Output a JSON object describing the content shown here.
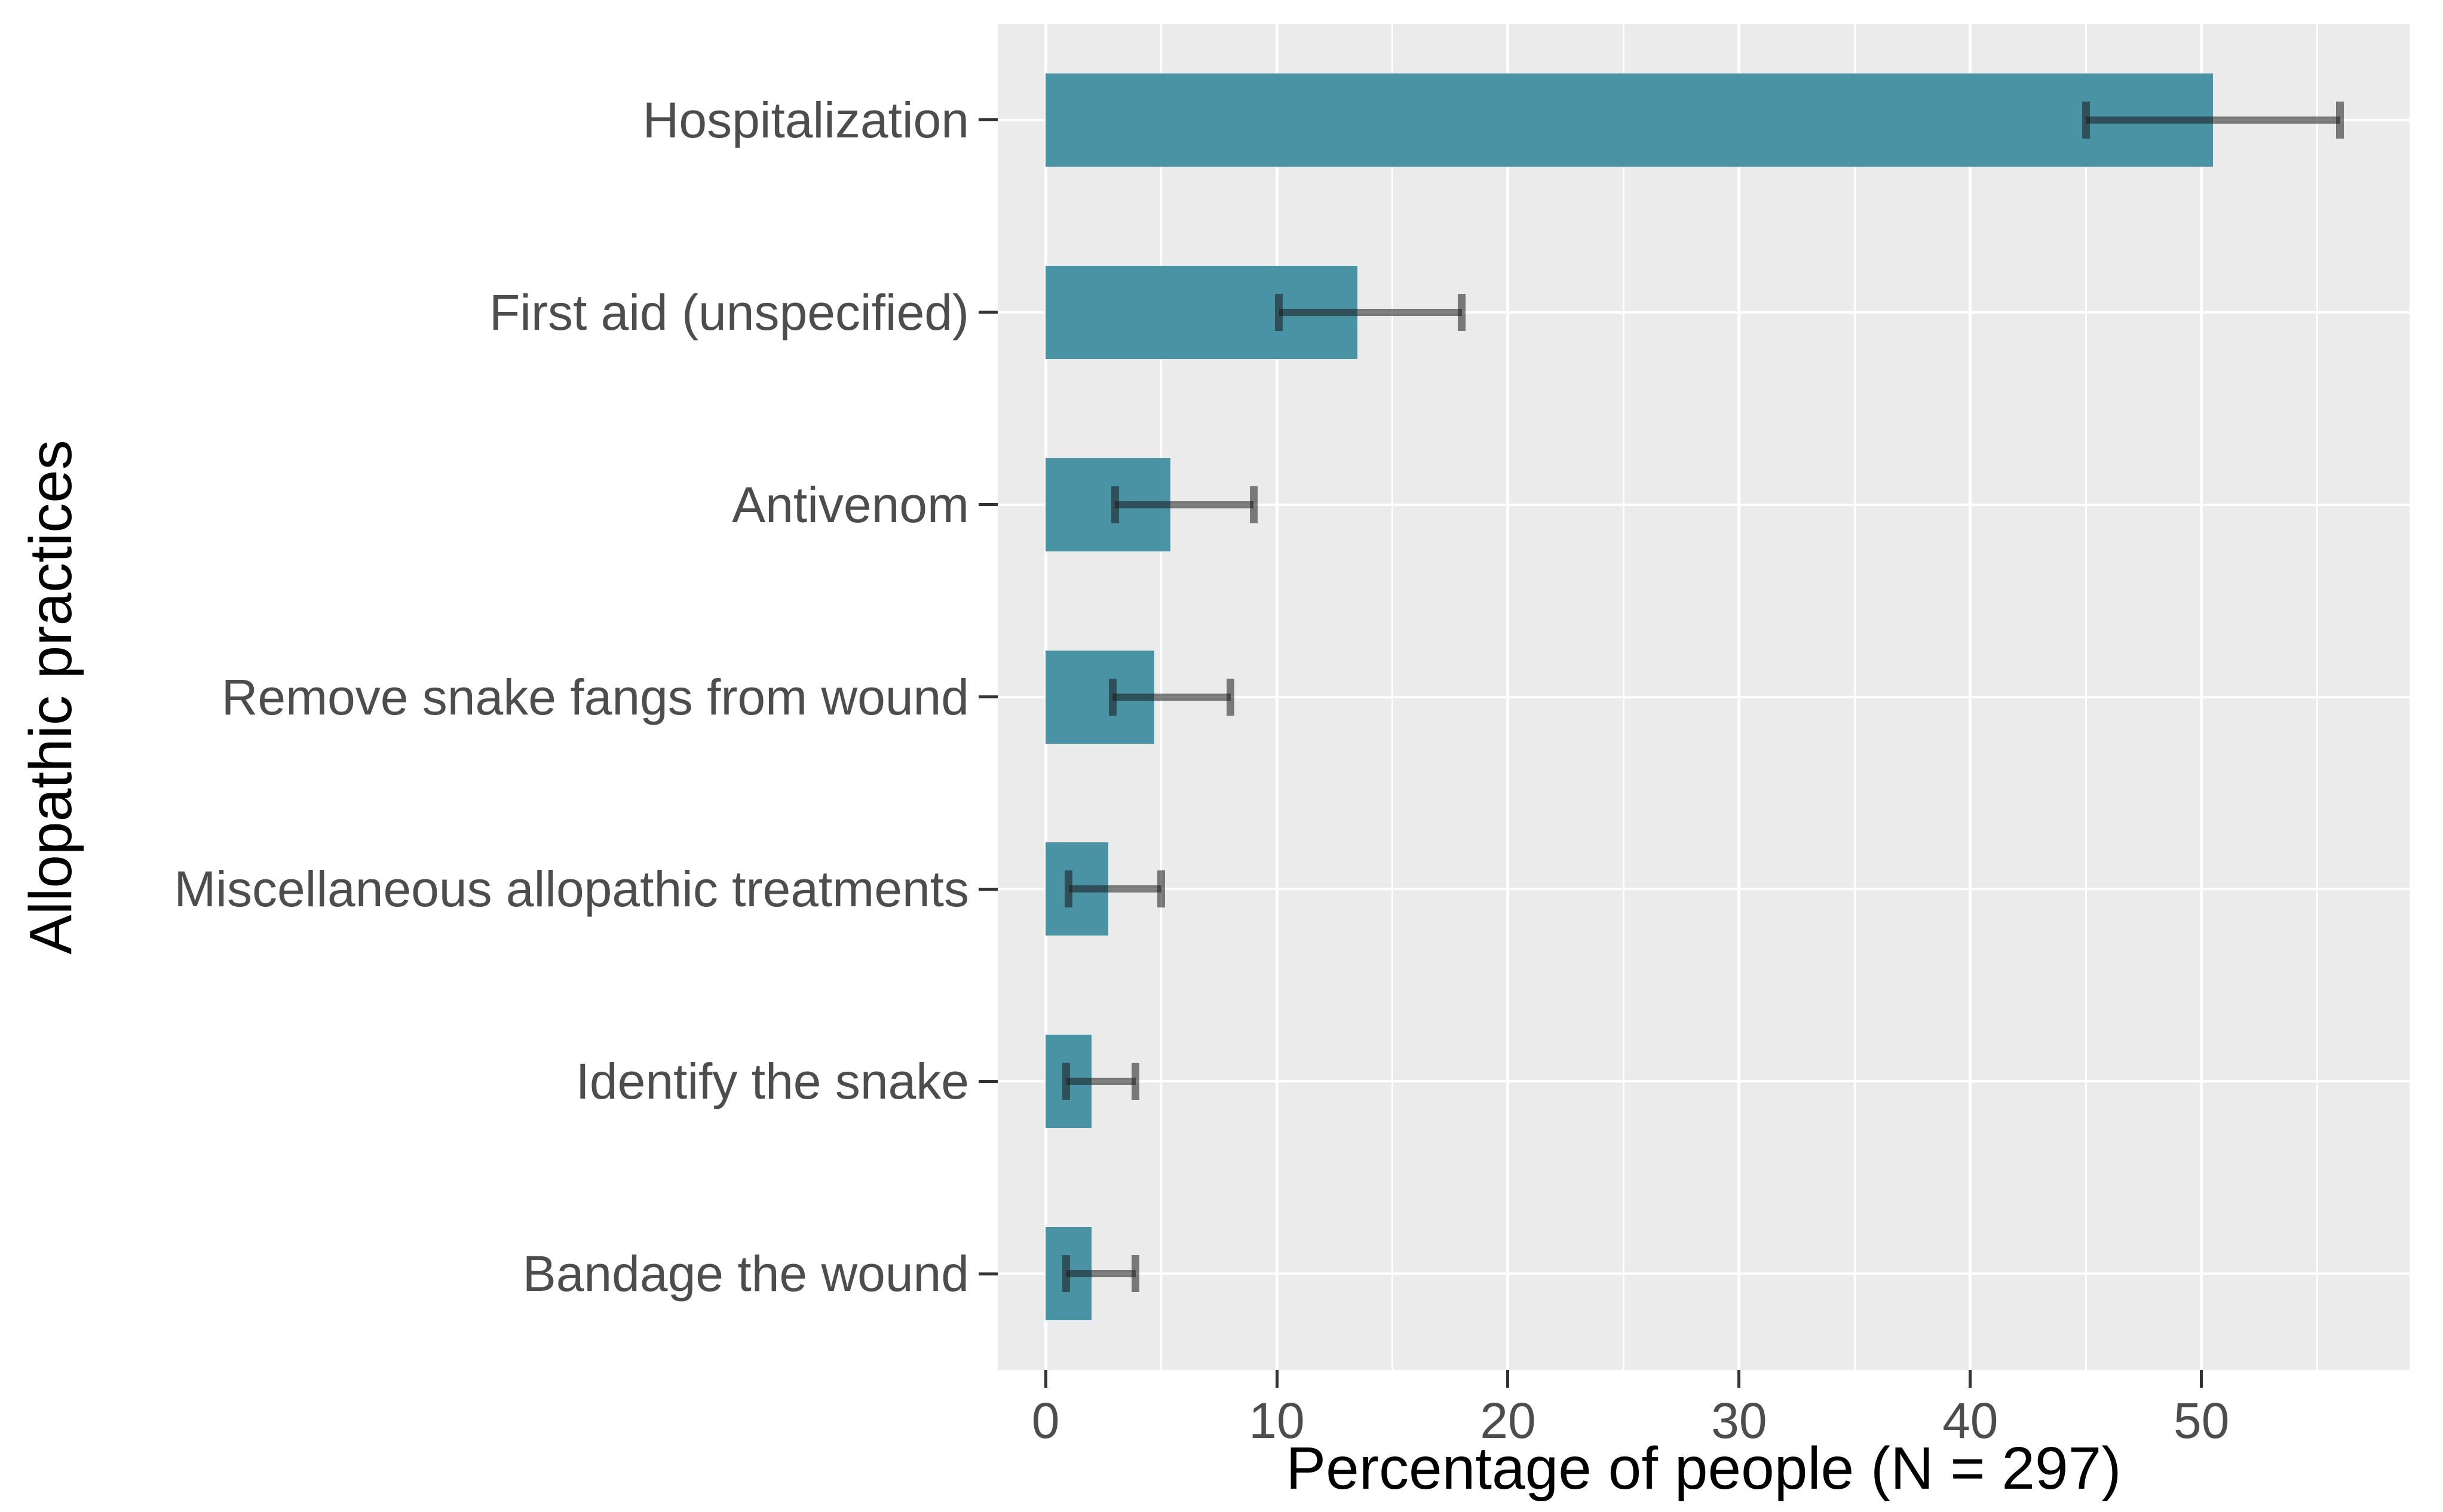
{
  "chart_data": {
    "type": "bar",
    "orientation": "horizontal",
    "title": "",
    "xlabel": "Percentage of people (N = 297)",
    "ylabel": "Allopathic practices",
    "categories": [
      "Hospitalization",
      "First aid (unspecified)",
      "Antivenom",
      "Remove snake fangs from wound",
      "Miscellaneous allopathic treatments",
      "Identify the snake",
      "Bandage the wound"
    ],
    "values": [
      50.5,
      13.5,
      5.4,
      4.7,
      2.7,
      2.0,
      2.0
    ],
    "error_low": [
      45.0,
      10.1,
      3.0,
      2.9,
      1.0,
      0.9,
      0.9
    ],
    "error_high": [
      56.0,
      18.0,
      9.0,
      8.0,
      5.0,
      3.9,
      3.9
    ],
    "x_ticks": [
      0,
      10,
      20,
      30,
      40,
      50
    ],
    "x_minor_ticks": [
      5,
      15,
      25,
      35,
      45,
      55
    ],
    "xlim": [
      -2.07,
      59.0
    ],
    "grid": true,
    "legend": false,
    "colors": {
      "bar_fill": "#4A93A5",
      "error_bar": "rgba(25,25,25,0.55)",
      "panel_bg": "#EBEBEB",
      "gridline": "#FFFFFF",
      "axis_text": "#4D4D4D",
      "axis_title": "#000000",
      "tick_mark": "#333333"
    }
  }
}
